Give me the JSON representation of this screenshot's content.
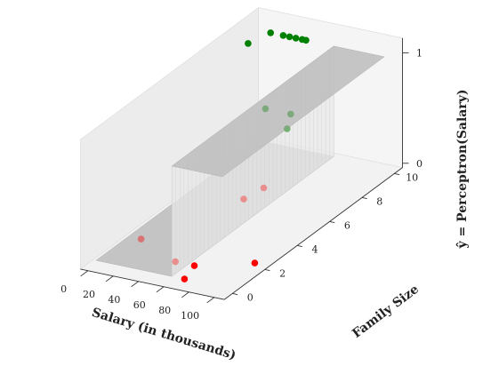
{
  "chart_data": {
    "type": "scatter",
    "projection": "3d",
    "title": "",
    "xlabel": "Salary (in thousands)",
    "ylabel": "Family Size",
    "zlabel": "ŷ = Perceptron(Salary)",
    "xlim": [
      0,
      100
    ],
    "ylim": [
      0,
      10
    ],
    "zlim": [
      0,
      1
    ],
    "x_ticks": [
      0,
      20,
      40,
      60,
      80,
      100
    ],
    "y_ticks": [
      0,
      2,
      4,
      6,
      8,
      10
    ],
    "z_ticks": [
      0,
      1
    ],
    "grid": false,
    "series": [
      {
        "color": "#008000",
        "points": [
          {
            "x": 5,
            "y": 9,
            "z": 1
          },
          {
            "x": 10,
            "y": 10,
            "z": 1
          },
          {
            "x": 20,
            "y": 10,
            "z": 1
          },
          {
            "x": 25,
            "y": 10,
            "z": 1
          },
          {
            "x": 30,
            "y": 10,
            "z": 1
          },
          {
            "x": 35,
            "y": 10,
            "z": 1
          },
          {
            "x": 38,
            "y": 10,
            "z": 1
          },
          {
            "x": 70,
            "y": 5,
            "z": 1
          },
          {
            "x": 90,
            "y": 5,
            "z": 1
          },
          {
            "x": 100,
            "y": 4,
            "z": 1
          }
        ]
      },
      {
        "color": "#ff0000",
        "points": [
          {
            "x": 10,
            "y": 2,
            "z": 0
          },
          {
            "x": 50,
            "y": 1,
            "z": 0
          },
          {
            "x": 65,
            "y": 1,
            "z": 0
          },
          {
            "x": 70,
            "y": 0,
            "z": 0
          },
          {
            "x": 40,
            "y": 6,
            "z": 0
          },
          {
            "x": 43,
            "y": 7,
            "z": 0
          },
          {
            "x": 100,
            "y": 2,
            "z": 0
          }
        ]
      }
    ],
    "surface": {
      "type": "step",
      "threshold_salary": 60,
      "low_value": 0,
      "high_value": 1,
      "color": "#c0c0c0"
    }
  }
}
